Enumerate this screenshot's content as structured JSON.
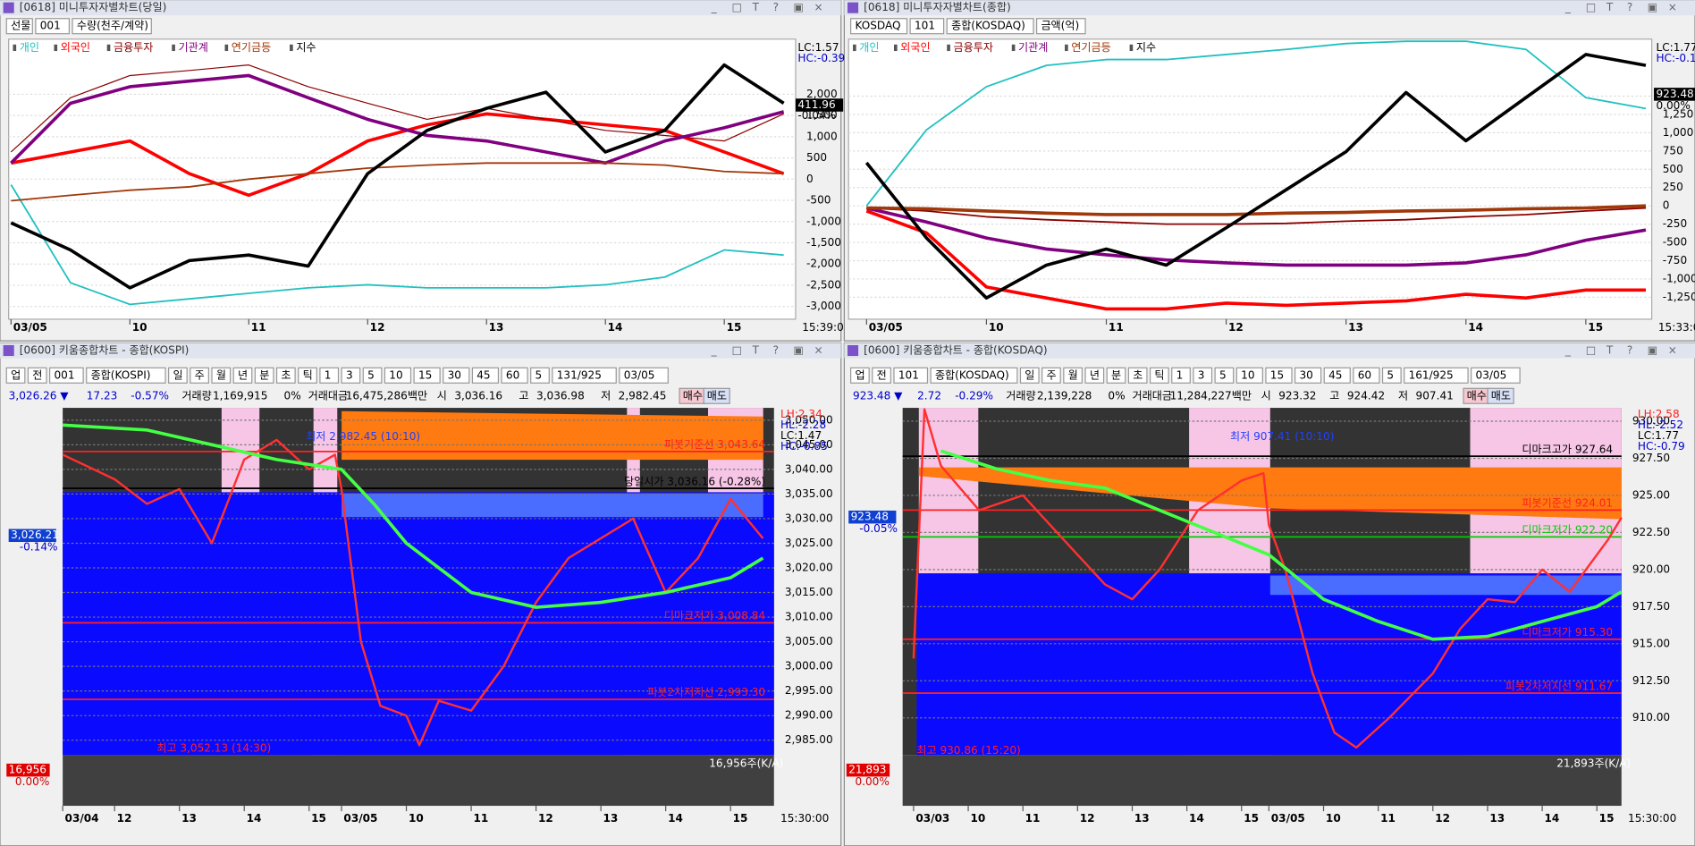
{
  "windows": [
    {
      "title": "[0618] 미니투자자별차트(당일)",
      "controls": [
        "선물",
        "001",
        "수량(천주/계약)"
      ]
    },
    {
      "title": "[0618] 미니투자자별차트(종합)",
      "controls": [
        "KOSDAQ",
        "101",
        "종합(KOSDAQ)",
        "금액(억)"
      ]
    },
    {
      "title": "[0600] 키움종합차트 - 종합(KOSPI)",
      "controls": [
        "업",
        "전",
        "001",
        "종합(KOSPI)",
        "일",
        "주",
        "월",
        "년",
        "분",
        "초",
        "틱",
        "1",
        "3",
        "5",
        "10",
        "15",
        "30",
        "45",
        "60",
        "5",
        "131/925",
        "03/05"
      ],
      "info": [
        "3,026.26 ▼",
        "17.23",
        "-0.57%",
        "거래량",
        "1,169,915",
        "0%",
        "거래대금",
        "16,475,286백만",
        "시",
        "3,036.16",
        "고",
        "3,036.98",
        "저",
        "2,982.45",
        "매수",
        "매도"
      ]
    },
    {
      "title": "[0600] 키움종합차트 - 종합(KOSDAQ)",
      "controls": [
        "업",
        "전",
        "101",
        "종합(KOSDAQ)",
        "일",
        "주",
        "월",
        "년",
        "분",
        "초",
        "틱",
        "1",
        "3",
        "5",
        "10",
        "15",
        "30",
        "45",
        "60",
        "5",
        "161/925",
        "03/05"
      ],
      "info": [
        "923.48 ▼",
        "2.72",
        "-0.29%",
        "거래량",
        "2,139,228",
        "0%",
        "거래대금",
        "11,284,227백만",
        "시",
        "923.32",
        "고",
        "924.42",
        "저",
        "907.41",
        "매수",
        "매도"
      ]
    }
  ],
  "chart_data": [
    {
      "type": "line",
      "time_label": "15:39:0",
      "x": [
        9,
        9.5,
        10,
        10.5,
        11,
        11.5,
        12,
        12.5,
        13,
        13.5,
        14,
        14.5,
        15,
        15.5
      ],
      "xlim": [
        8.98,
        15.6
      ],
      "xticks": [
        {
          "value": 9,
          "label": "03/05"
        },
        10,
        11,
        12,
        13,
        14,
        15
      ],
      "ylim": [
        -3300,
        3300
      ],
      "yticks": [
        {
          "value": 2000,
          "label": "2,000"
        },
        {
          "value": 1500,
          "label": "1,500"
        },
        {
          "value": 1000,
          "label": "1,000"
        },
        500,
        0,
        -500,
        {
          "value": -1000,
          "label": "-1,000"
        },
        {
          "value": -1500,
          "label": "-1,500"
        },
        {
          "value": -2000,
          "label": "-2,000"
        },
        {
          "value": -2500,
          "label": "-2,500"
        },
        {
          "value": -3000,
          "label": "-3,000"
        }
      ],
      "grid": true,
      "series": [
        {
          "name": "개인",
          "color": "#20c0c0",
          "width": 1.5,
          "values": [
            -130,
            -2440,
            -2950,
            -2820,
            -2690,
            -2560,
            -2490,
            -2560,
            -2560,
            -2560,
            -2490,
            -2310,
            -1670,
            -1790
          ]
        },
        {
          "name": "외국인",
          "color": "#ff0000",
          "width": 3,
          "values": [
            380,
            640,
            900,
            130,
            -380,
            130,
            900,
            1280,
            1540,
            1410,
            1280,
            1150,
            640,
            130
          ]
        },
        {
          "name": "금융투자",
          "color": "#8b0000",
          "width": 1,
          "values": [
            640,
            1920,
            2440,
            2560,
            2690,
            2180,
            1790,
            1410,
            1670,
            1410,
            1150,
            1030,
            900,
            1540
          ]
        },
        {
          "name": "기관계",
          "color": "#800080",
          "width": 3,
          "values": [
            380,
            1790,
            2180,
            2310,
            2440,
            1920,
            1410,
            1030,
            900,
            640,
            380,
            900,
            1210,
            1590
          ]
        },
        {
          "name": "연기금등",
          "color": "#a0380a",
          "width": 1.5,
          "values": [
            -510,
            -380,
            -260,
            -180,
            0,
            130,
            260,
            330,
            380,
            380,
            380,
            330,
            180,
            130
          ]
        },
        {
          "name": "지수",
          "color": "#000000",
          "width": 3,
          "values": [
            -1030,
            -1670,
            -2560,
            -1920,
            -1790,
            -2050,
            130,
            1150,
            1670,
            2050,
            640,
            1150,
            2690,
            1790
          ]
        }
      ],
      "annotations": [
        "LC:1.57",
        "HC:-0.39",
        "411.96",
        "-0.04%"
      ]
    },
    {
      "type": "line",
      "time_label": "15:33:0",
      "x": [
        9,
        9.5,
        10,
        10.5,
        11,
        11.5,
        12,
        12.5,
        13,
        13.5,
        14,
        14.5,
        15,
        15.5
      ],
      "xlim": [
        8.85,
        15.55
      ],
      "xticks": [
        {
          "value": 9,
          "label": "03/05"
        },
        10,
        11,
        12,
        13,
        14,
        15
      ],
      "ylim": [
        -1550,
        2280
      ],
      "yticks": [
        {
          "value": 1500,
          "label": "1,500"
        },
        {
          "value": 1250,
          "label": "1,250"
        },
        {
          "value": 1000,
          "label": "1,000"
        },
        750,
        500,
        250,
        0,
        -250,
        -500,
        -750,
        {
          "value": -1000,
          "label": "-1,000"
        },
        {
          "value": -1250,
          "label": "-1,250"
        }
      ],
      "grid": true,
      "series": [
        {
          "name": "개인",
          "color": "#20c0c0",
          "width": 1.5,
          "values": [
            0,
            1040,
            1630,
            1920,
            2000,
            2000,
            2070,
            2140,
            2220,
            2250,
            2250,
            2140,
            1480,
            1330
          ]
        },
        {
          "name": "외국인",
          "color": "#ff0000",
          "width": 3,
          "values": [
            -70,
            -370,
            -1110,
            -1260,
            -1410,
            -1410,
            -1330,
            -1360,
            -1330,
            -1300,
            -1210,
            -1260,
            -1150,
            -1150
          ]
        },
        {
          "name": "금융투자",
          "color": "#8b0000",
          "width": 1.5,
          "values": [
            -30,
            -70,
            -150,
            -190,
            -220,
            -250,
            -250,
            -240,
            -210,
            -190,
            -150,
            -120,
            -70,
            -30
          ]
        },
        {
          "name": "기관계",
          "color": "#800080",
          "width": 3,
          "values": [
            -30,
            -220,
            -440,
            -590,
            -670,
            -740,
            -780,
            -810,
            -810,
            -810,
            -780,
            -670,
            -470,
            -330
          ]
        },
        {
          "name": "연기금등",
          "color": "#a0380a",
          "width": 3,
          "values": [
            -30,
            -40,
            -70,
            -100,
            -120,
            -120,
            -120,
            -100,
            -90,
            -70,
            -60,
            -40,
            -30,
            0
          ]
        },
        {
          "name": "지수",
          "color": "#000000",
          "width": 3,
          "values": [
            590,
            -440,
            -1260,
            -810,
            -590,
            -810,
            -300,
            220,
            740,
            1550,
            890,
            1480,
            2070,
            1920
          ]
        }
      ],
      "annotations": [
        "LC:1.77",
        "HC:-0.1",
        "923.48",
        "0.00%"
      ]
    },
    {
      "type": "line",
      "time_label": "15:30:00",
      "x": [
        -4.3,
        -3.5,
        -3,
        -2.5,
        -2,
        -1.5,
        -1,
        -0.5,
        -0.1,
        0,
        0.3,
        0.6,
        1,
        1.2,
        1.5,
        2,
        2.5,
        3,
        3.5,
        4,
        4.5,
        5,
        5.5,
        6,
        6.5
      ],
      "xlim": [
        -4.3,
        6.67
      ],
      "xticks": [
        {
          "value": -4.3,
          "label": "03/04"
        },
        {
          "value": -3.5,
          "label": "12"
        },
        {
          "value": -2.5,
          "label": "13"
        },
        {
          "value": -1.5,
          "label": "14"
        },
        {
          "value": -0.5,
          "label": "15"
        },
        {
          "value": 0,
          "label": "03/05"
        },
        {
          "value": 1,
          "label": "10"
        },
        {
          "value": 2,
          "label": "11"
        },
        {
          "value": 3,
          "label": "12"
        },
        {
          "value": 4,
          "label": "13"
        },
        {
          "value": 5,
          "label": "14"
        },
        {
          "value": 6,
          "label": "15"
        }
      ],
      "ylim": [
        2982,
        3052.5
      ],
      "yticks": [
        {
          "value": 3050,
          "label": "3,050.00"
        },
        {
          "value": 3045,
          "label": "3,045.00"
        },
        {
          "value": 3040,
          "label": "3,040.00"
        },
        {
          "value": 3035,
          "label": "3,035.00"
        },
        {
          "value": 3030,
          "label": "3,030.00"
        },
        {
          "value": 3025,
          "label": "3,025.00"
        },
        {
          "value": 3020,
          "label": "3,020.00"
        },
        {
          "value": 3015,
          "label": "3,015.00"
        },
        {
          "value": 3010,
          "label": "3,010.00"
        },
        {
          "value": 3005,
          "label": "3,005.00"
        },
        {
          "value": 3000,
          "label": "3,000.00"
        },
        {
          "value": 2995,
          "label": "2,995.00"
        },
        {
          "value": 2990,
          "label": "2,990.00"
        },
        {
          "value": 2985,
          "label": "2,985.00"
        }
      ],
      "series": [
        {
          "color": "#ff3030",
          "width": 2,
          "values": [
            3043,
            3038,
            3033,
            3036,
            3025,
            3042,
            3046,
            3040,
            3043,
            3036,
            3005,
            2992,
            2990,
            2984,
            2993,
            2991,
            3000,
            3013,
            3022,
            3026,
            3030,
            3015,
            3022,
            3034,
            3026
          ]
        },
        {
          "color": "#44ff44",
          "width": 3,
          "x": [
            -4.3,
            -3,
            -2,
            -1,
            0,
            0.5,
            1,
            2,
            3,
            4,
            5,
            6,
            6.5
          ],
          "values": [
            3049,
            3048,
            3045,
            3042,
            3040,
            3033,
            3025,
            3015,
            3012,
            3013,
            3015,
            3018,
            3022
          ]
        }
      ],
      "levels": [
        {
          "label": "피봇기준선 3,043.64",
          "value": 3043.64,
          "color": "#ff2020"
        },
        {
          "label": "당일시가 3,036.16 (-0.28%)",
          "value": 3036.16,
          "color": "#000000"
        },
        {
          "label": "디마크저가 3,008.84",
          "value": 3008.84,
          "color": "#ff2020"
        },
        {
          "label": "피봇2차저지선 2,993.30",
          "value": 2993.3,
          "color": "#ff2020"
        }
      ],
      "annotations": [
        "최고 3,052.13 (14:30)",
        "최저 2,982.45 (10:10)",
        "3,026.21",
        "-0.14%",
        "LH:2.34",
        "HL:-2.28",
        "LC:1.47",
        "HC:-0.85"
      ],
      "volume_labels": [
        "16,956주(K/A)",
        "16,956",
        "0.00%"
      ]
    },
    {
      "type": "line",
      "time_label": "15:30:00",
      "x": [
        -6.5,
        -6.3,
        -6.0,
        -5.3,
        -4.5,
        -3.5,
        -3,
        -2.5,
        -2,
        -1.3,
        -0.5,
        -0.1,
        0,
        0.3,
        0.8,
        1.2,
        1.6,
        2.2,
        3,
        3.5,
        4,
        4.5,
        5,
        5.5,
        6.2,
        6.45
      ],
      "xlim": [
        -6.7,
        6.45
      ],
      "xticks": [
        {
          "value": -6.5,
          "label": "03/03"
        },
        {
          "value": -5.5,
          "label": "10"
        },
        {
          "value": -4.5,
          "label": "11"
        },
        {
          "value": -3.5,
          "label": "12"
        },
        {
          "value": -2.5,
          "label": "13"
        },
        {
          "value": -1.5,
          "label": "14"
        },
        {
          "value": -0.5,
          "label": "15"
        },
        {
          "value": 0,
          "label": "03/05"
        },
        {
          "value": 1,
          "label": "10"
        },
        {
          "value": 2,
          "label": "11"
        },
        {
          "value": 3,
          "label": "12"
        },
        {
          "value": 4,
          "label": "13"
        },
        {
          "value": 5,
          "label": "14"
        },
        {
          "value": 6,
          "label": "15"
        }
      ],
      "ylim": [
        907.5,
        930.9
      ],
      "yticks": [
        {
          "value": 930,
          "label": "930.00"
        },
        {
          "value": 927.5,
          "label": "927.50"
        },
        {
          "value": 925,
          "label": "925.00"
        },
        {
          "value": 922.5,
          "label": "922.50"
        },
        {
          "value": 920,
          "label": "920.00"
        },
        {
          "value": 917.5,
          "label": "917.50"
        },
        {
          "value": 915,
          "label": "915.00"
        },
        {
          "value": 912.5,
          "label": "912.50"
        },
        {
          "value": 910,
          "label": "910.00"
        }
      ],
      "series": [
        {
          "color": "#ff3030",
          "width": 2,
          "values": [
            914,
            930.8,
            927,
            924,
            925,
            921,
            919,
            918,
            920,
            924,
            926,
            926.5,
            923,
            920,
            913,
            909,
            908,
            910,
            913,
            916,
            918,
            917.8,
            920,
            918.5,
            922,
            923.5
          ]
        },
        {
          "color": "#44ff44",
          "width": 3,
          "x": [
            -6,
            -5,
            -4,
            -3,
            -2,
            -1,
            0,
            1,
            2,
            3,
            4,
            5,
            6,
            6.45
          ],
          "values": [
            928,
            926.8,
            926,
            925.5,
            924,
            922.5,
            921,
            918,
            916.5,
            915.3,
            915.5,
            916.5,
            917.5,
            918.5
          ]
        }
      ],
      "levels": [
        {
          "label": "디마크고가 927.64",
          "value": 927.64,
          "color": "#000000"
        },
        {
          "label": "피봇기준선 924.01",
          "value": 924.01,
          "color": "#ff2020"
        },
        {
          "label": "디마크저가 922.20",
          "value": 922.2,
          "color": "#00cc00"
        },
        {
          "label": "디마크저가 915.30",
          "value": 915.3,
          "color": "#ff2020"
        },
        {
          "label": "피봇2차저지선 911.67",
          "value": 911.67,
          "color": "#ff2020"
        }
      ],
      "annotations": [
        "최고 930.86 (15:20)",
        "최저 907.41 (10:10)",
        "923.48",
        "-0.05%",
        "LH:2.58",
        "HL:-2.52",
        "LC:1.77",
        "HC:-0.79"
      ],
      "volume_labels": [
        "21,893주(K/A)",
        "21,893",
        "0.00%"
      ]
    }
  ]
}
